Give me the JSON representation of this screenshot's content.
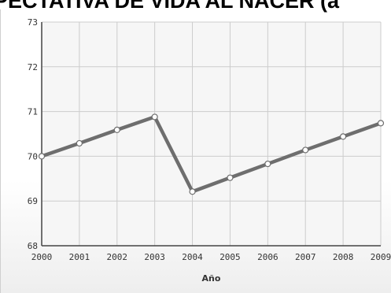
{
  "chart_data": {
    "type": "line",
    "title": "PECTATIVA DE VIDA AL NACER (a",
    "xlabel": "Año",
    "ylabel": "",
    "x": [
      "2000",
      "2001",
      "2002",
      "2003",
      "2004",
      "2005",
      "2006",
      "2007",
      "2008",
      "2009"
    ],
    "y_ticks": [
      "68",
      "69",
      "70",
      "71",
      "72",
      "73"
    ],
    "ylim": [
      68,
      73
    ],
    "grid": true,
    "legend": "none",
    "series": [
      {
        "values": [
          70.0,
          70.29,
          70.59,
          70.88,
          69.21,
          69.52,
          69.83,
          70.14,
          70.44,
          70.74
        ],
        "color": "#6e6e6e"
      }
    ]
  }
}
